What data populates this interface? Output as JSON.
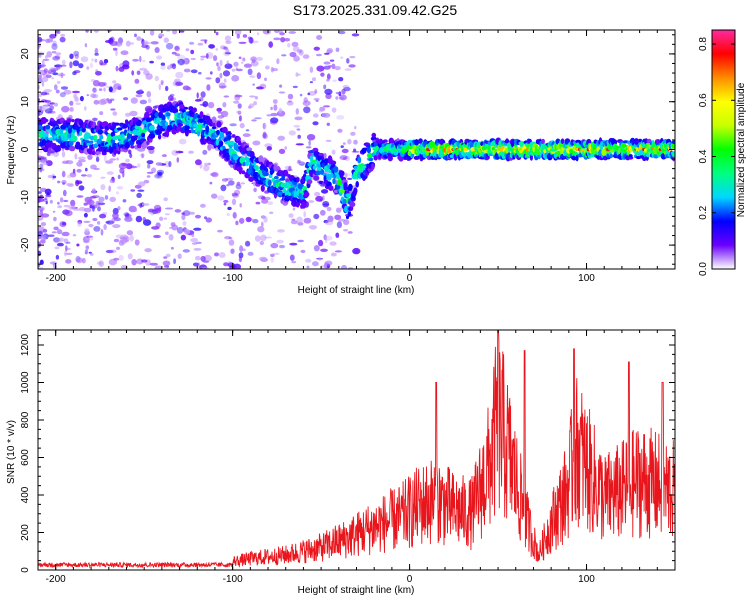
{
  "title": "S173.2025.331.09.42.G25",
  "chart_data": [
    {
      "type": "heatmap",
      "xlabel": "Height of straight line (km)",
      "ylabel": "Frequency (Hz)",
      "xlim": [
        -210,
        150
      ],
      "ylim": [
        -25,
        25
      ],
      "xticks": [
        -200,
        -100,
        0,
        100
      ],
      "yticks": [
        -20,
        -10,
        0,
        10,
        20
      ],
      "colorbar": {
        "label": "Normalized spectral amplitude",
        "range": [
          0,
          0.85
        ],
        "ticks": [
          0.0,
          0.2,
          0.4,
          0.6,
          0.8
        ],
        "colormap": [
          "#ffffff",
          "#6a00ff",
          "#0000ff",
          "#00d7ff",
          "#00ff7f",
          "#00ff00",
          "#c8ff00",
          "#ffff00",
          "#ff8c00",
          "#ff0000",
          "#ff2aa0"
        ]
      },
      "ridge": [
        [
          -210,
          3
        ],
        [
          -190,
          3
        ],
        [
          -170,
          2
        ],
        [
          -150,
          4
        ],
        [
          -140,
          6
        ],
        [
          -130,
          7
        ],
        [
          -120,
          5
        ],
        [
          -110,
          3
        ],
        [
          -100,
          0
        ],
        [
          -90,
          -3
        ],
        [
          -80,
          -6
        ],
        [
          -70,
          -8
        ],
        [
          -60,
          -9
        ],
        [
          -55,
          -2
        ],
        [
          -50,
          -4
        ],
        [
          -40,
          -6
        ],
        [
          -35,
          -12
        ],
        [
          -30,
          -5
        ],
        [
          -20,
          0
        ],
        [
          -10,
          0
        ],
        [
          0,
          0
        ],
        [
          20,
          0
        ],
        [
          50,
          0
        ],
        [
          80,
          0
        ],
        [
          100,
          0
        ],
        [
          130,
          0
        ],
        [
          150,
          0
        ]
      ],
      "noise_region": [
        -210,
        -140
      ]
    },
    {
      "type": "line",
      "xlabel": "Height of straight line (km)",
      "ylabel": "SNR (10 * v/v)",
      "xlim": [
        -210,
        150
      ],
      "ylim": [
        0,
        1280
      ],
      "xticks": [
        -200,
        -100,
        0,
        100
      ],
      "yticks": [
        0,
        200,
        400,
        600,
        800,
        1000,
        1200
      ],
      "color": "#e8161c",
      "envelope": [
        [
          -210,
          25
        ],
        [
          -150,
          25
        ],
        [
          -110,
          30
        ],
        [
          -90,
          60
        ],
        [
          -70,
          80
        ],
        [
          -50,
          120
        ],
        [
          -35,
          170
        ],
        [
          -20,
          230
        ],
        [
          -5,
          280
        ],
        [
          5,
          340
        ],
        [
          15,
          380
        ],
        [
          25,
          320
        ],
        [
          35,
          300
        ],
        [
          45,
          550
        ],
        [
          50,
          800
        ],
        [
          55,
          650
        ],
        [
          65,
          300
        ],
        [
          73,
          80
        ],
        [
          80,
          250
        ],
        [
          88,
          400
        ],
        [
          95,
          650
        ],
        [
          100,
          550
        ],
        [
          110,
          380
        ],
        [
          120,
          420
        ],
        [
          130,
          480
        ],
        [
          140,
          450
        ],
        [
          150,
          420
        ]
      ],
      "peaks": [
        [
          15,
          1000
        ],
        [
          50,
          1280
        ],
        [
          65,
          1170
        ],
        [
          93,
          1180
        ],
        [
          124,
          1110
        ],
        [
          143,
          1000
        ]
      ]
    }
  ]
}
